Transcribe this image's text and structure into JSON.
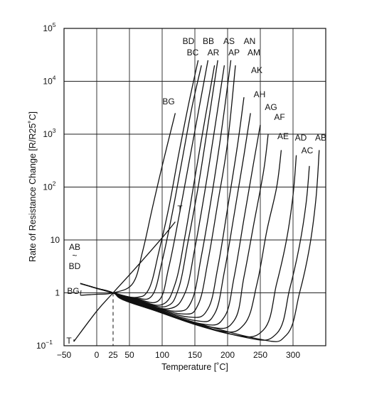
{
  "chart_data": {
    "type": "line",
    "title": "",
    "xlabel": "Temperature [˚C]",
    "ylabel": "Rate of Resistance Change [R/R25˚C]",
    "xlim": [
      -50,
      350
    ],
    "ylim": [
      0.1,
      100000
    ],
    "y_scale": "log",
    "grid": true,
    "x_ticks": [
      {
        "value": -50,
        "label": "−50"
      },
      {
        "value": 0,
        "label": "0"
      },
      {
        "value": 25,
        "label": "25"
      },
      {
        "value": 50,
        "label": "50"
      },
      {
        "value": 100,
        "label": "100"
      },
      {
        "value": 150,
        "label": "150"
      },
      {
        "value": 200,
        "label": "200"
      },
      {
        "value": 250,
        "label": "250"
      },
      {
        "value": 300,
        "label": "300"
      }
    ],
    "y_ticks": [
      {
        "value": 0.1,
        "base": "10",
        "exp": "−1"
      },
      {
        "value": 1,
        "base": "1",
        "exp": ""
      },
      {
        "value": 10,
        "base": "10",
        "exp": ""
      },
      {
        "value": 100,
        "base": "10",
        "exp": "2"
      },
      {
        "value": 1000,
        "base": "10",
        "exp": "3"
      },
      {
        "value": 10000,
        "base": "10",
        "exp": "4"
      },
      {
        "value": 100000,
        "base": "10",
        "exp": "5"
      }
    ],
    "reference_line": {
      "x": 25,
      "style": "dashed"
    },
    "group_label": {
      "top": "AB",
      "middle": "~",
      "bottom": "BD"
    },
    "series": [
      {
        "name": "T",
        "x": [
          -35,
          0,
          25,
          60,
          100,
          120
        ],
        "y": [
          0.12,
          0.45,
          1.0,
          3.0,
          11,
          22
        ]
      },
      {
        "name": "BG",
        "x": [
          -25,
          0,
          25,
          55,
          70,
          85,
          100,
          120
        ],
        "y": [
          0.9,
          0.94,
          1.0,
          1.5,
          6,
          40,
          250,
          2500
        ]
      },
      {
        "name": "BD",
        "x": [
          -25,
          0,
          25,
          60,
          80,
          95,
          110,
          125,
          140,
          155
        ],
        "y": [
          1.5,
          1.22,
          1.0,
          0.82,
          1.2,
          6,
          40,
          400,
          3500,
          25000
        ]
      },
      {
        "name": "BC",
        "x": [
          -25,
          0,
          25,
          60,
          85,
          100,
          115,
          130,
          145,
          160
        ],
        "y": [
          1.5,
          1.22,
          1.0,
          0.8,
          0.9,
          4,
          30,
          300,
          3000,
          20000
        ]
      },
      {
        "name": "BB",
        "x": [
          -25,
          0,
          25,
          60,
          95,
          110,
          125,
          140,
          155,
          170
        ],
        "y": [
          1.5,
          1.22,
          1.0,
          0.78,
          0.72,
          3,
          25,
          250,
          2500,
          25000
        ]
      },
      {
        "name": "AR",
        "x": [
          -25,
          0,
          25,
          60,
          100,
          120,
          135,
          150,
          165,
          180
        ],
        "y": [
          1.5,
          1.22,
          1.0,
          0.76,
          0.6,
          1.5,
          12,
          150,
          1800,
          20000
        ]
      },
      {
        "name": "AS",
        "x": [
          -25,
          0,
          25,
          60,
          105,
          125,
          140,
          155,
          170,
          185
        ],
        "y": [
          1.5,
          1.22,
          1.0,
          0.74,
          0.55,
          1.2,
          10,
          100,
          1500,
          25000
        ]
      },
      {
        "name": "AP",
        "x": [
          -25,
          0,
          25,
          60,
          110,
          135,
          150,
          165,
          180,
          195
        ],
        "y": [
          1.5,
          1.22,
          1.0,
          0.72,
          0.5,
          1.0,
          7,
          80,
          1200,
          20000
        ]
      },
      {
        "name": "AN",
        "x": [
          -25,
          0,
          25,
          60,
          120,
          145,
          160,
          175,
          190,
          205
        ],
        "y": [
          1.5,
          1.22,
          1.0,
          0.7,
          0.45,
          0.7,
          5,
          60,
          1000,
          25000
        ]
      },
      {
        "name": "AM",
        "x": [
          -25,
          0,
          25,
          60,
          130,
          155,
          170,
          185,
          200,
          212
        ],
        "y": [
          1.5,
          1.22,
          1.0,
          0.69,
          0.4,
          0.6,
          4,
          50,
          700,
          20000
        ]
      },
      {
        "name": "AK",
        "x": [
          -25,
          0,
          25,
          60,
          140,
          170,
          185,
          200,
          215,
          225
        ],
        "y": [
          1.5,
          1.22,
          1.0,
          0.67,
          0.35,
          0.5,
          3,
          40,
          600,
          5000
        ]
      },
      {
        "name": "AH",
        "x": [
          -25,
          0,
          25,
          60,
          150,
          180,
          195,
          210,
          225,
          235
        ],
        "y": [
          1.5,
          1.22,
          1.0,
          0.66,
          0.3,
          0.4,
          2.5,
          30,
          400,
          2500
        ]
      },
      {
        "name": "AG",
        "x": [
          -25,
          0,
          25,
          60,
          160,
          195,
          210,
          225,
          240,
          250
        ],
        "y": [
          1.5,
          1.22,
          1.0,
          0.65,
          0.26,
          0.35,
          2,
          25,
          300,
          1500
        ]
      },
      {
        "name": "AF",
        "x": [
          -25,
          0,
          25,
          60,
          170,
          210,
          225,
          240,
          255,
          262
        ],
        "y": [
          1.5,
          1.22,
          1.0,
          0.64,
          0.23,
          0.3,
          2,
          20,
          200,
          1000
        ]
      },
      {
        "name": "AE",
        "x": [
          -25,
          0,
          25,
          60,
          180,
          225,
          245,
          260,
          275,
          282
        ],
        "y": [
          1.5,
          1.22,
          1.0,
          0.63,
          0.2,
          0.25,
          1.5,
          15,
          100,
          500
        ]
      },
      {
        "name": "AD",
        "x": [
          -25,
          0,
          25,
          60,
          200,
          255,
          275,
          290,
          300,
          305
        ],
        "y": [
          1.5,
          1.22,
          1.0,
          0.62,
          0.17,
          0.2,
          1.5,
          10,
          70,
          400
        ]
      },
      {
        "name": "AC",
        "x": [
          -25,
          0,
          25,
          60,
          220,
          275,
          295,
          310,
          320,
          325
        ],
        "y": [
          1.5,
          1.22,
          1.0,
          0.61,
          0.15,
          0.17,
          1.2,
          8,
          50,
          250
        ]
      },
      {
        "name": "AB",
        "x": [
          -25,
          0,
          25,
          60,
          240,
          290,
          310,
          325,
          335,
          340
        ],
        "y": [
          1.5,
          1.22,
          1.0,
          0.6,
          0.14,
          0.16,
          1.0,
          7,
          60,
          500
        ]
      }
    ]
  }
}
